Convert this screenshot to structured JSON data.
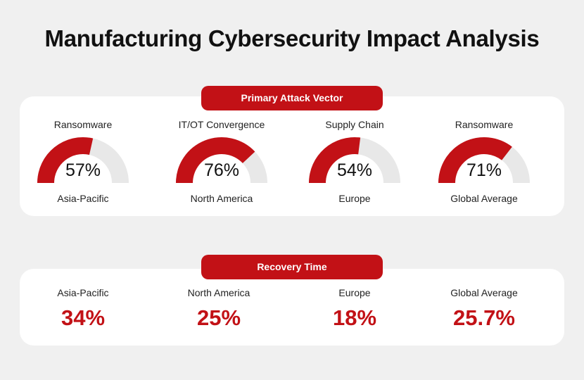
{
  "title": "Manufacturing Cybersecurity Impact Analysis",
  "colors": {
    "accent": "#c21116",
    "track": "#e8e8e8",
    "background": "#f0f0f0",
    "card": "#ffffff"
  },
  "attack_vector": {
    "heading": "Primary Attack Vector",
    "items": [
      {
        "vector": "Ransomware",
        "value_label": "57%",
        "region": "Asia-Pacific"
      },
      {
        "vector": "IT/OT Convergence",
        "value_label": "76%",
        "region": "North America"
      },
      {
        "vector": "Supply Chain",
        "value_label": "54%",
        "region": "Europe"
      },
      {
        "vector": "Ransomware",
        "value_label": "71%",
        "region": "Global Average"
      }
    ]
  },
  "recovery_time": {
    "heading": "Recovery Time",
    "items": [
      {
        "region": "Asia-Pacific",
        "value_label": "34%"
      },
      {
        "region": "North America",
        "value_label": "25%"
      },
      {
        "region": "Europe",
        "value_label": "18%"
      },
      {
        "region": "Global Average",
        "value_label": "25.7%"
      }
    ]
  },
  "chart_data": [
    {
      "type": "gauge",
      "title": "Primary Attack Vector",
      "categories": [
        "Asia-Pacific",
        "North America",
        "Europe",
        "Global Average"
      ],
      "labels": [
        "Ransomware",
        "IT/OT Convergence",
        "Supply Chain",
        "Ransomware"
      ],
      "values": [
        57,
        76,
        54,
        71
      ],
      "range": [
        0,
        100
      ],
      "unit": "%"
    },
    {
      "type": "table",
      "title": "Recovery Time",
      "categories": [
        "Asia-Pacific",
        "North America",
        "Europe",
        "Global Average"
      ],
      "values": [
        34,
        25,
        18,
        25.7
      ],
      "unit": "%"
    }
  ]
}
